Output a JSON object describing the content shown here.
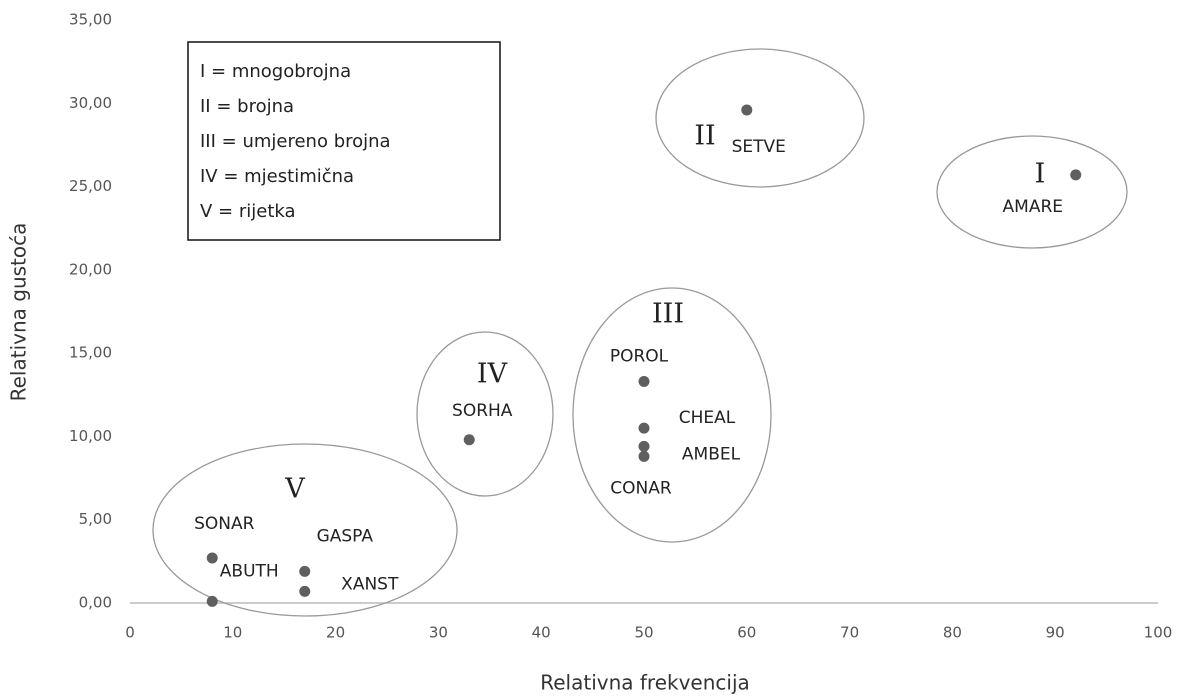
{
  "chart_data": {
    "type": "scatter",
    "xlabel": "Relativna frekvencija",
    "ylabel": "Relativna gustoća",
    "xlim": [
      0,
      100
    ],
    "xticks": [
      0,
      10,
      20,
      30,
      40,
      50,
      60,
      70,
      80,
      90,
      100
    ],
    "ylim": [
      0,
      35
    ],
    "yticks": [
      {
        "value": 0,
        "label": "0,00"
      },
      {
        "value": 5,
        "label": "5,00"
      },
      {
        "value": 10,
        "label": "10,00"
      },
      {
        "value": 15,
        "label": "15,00"
      },
      {
        "value": 20,
        "label": "20,00"
      },
      {
        "value": 25,
        "label": "25,00"
      },
      {
        "value": 30,
        "label": "30,00"
      },
      {
        "value": 35,
        "label": "35,00"
      }
    ],
    "color": "#5f5f5f",
    "x": [
      92,
      60,
      50,
      50,
      50,
      50,
      33,
      8,
      8,
      17,
      17
    ],
    "values": [
      25.7,
      29.6,
      13.3,
      10.5,
      9.4,
      8.8,
      9.8,
      2.7,
      0.1,
      1.9,
      0.7
    ],
    "point_labels": [
      "AMARE",
      "SETVE",
      "POROL",
      "CHEAL",
      "AMBEL",
      "CONAR",
      "SORHA",
      "SONAR",
      "ABUTH",
      "GASPA",
      "XANST"
    ],
    "group_labels": [
      "I",
      "II",
      "III",
      "IV",
      "V"
    ],
    "legend_lines": [
      "I = mnogobrojna",
      "II = brojna",
      "III = umjereno brojna",
      "IV = mjestimična",
      "V = rijetka"
    ]
  }
}
